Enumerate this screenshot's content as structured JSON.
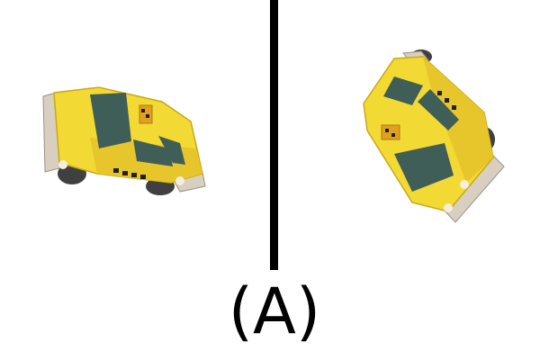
{
  "caption": "(A)",
  "colors": {
    "body": "#f2d933",
    "body_shade": "#d8b820",
    "window": "#3f5e58",
    "bumper": "#d8cfc0",
    "checker": "#1f1f1f",
    "tire": "#404040"
  },
  "icons": [
    "taxi-left-icon",
    "taxi-right-icon"
  ]
}
